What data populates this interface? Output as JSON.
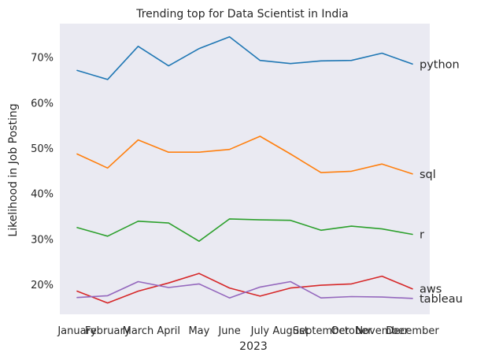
{
  "chart_data": {
    "type": "line",
    "title": "Trending top for Data Scientist in India",
    "xlabel": "2023",
    "ylabel": "Likelihood in Job Posting",
    "x": [
      "January",
      "February",
      "March",
      "April",
      "May",
      "June",
      "July",
      "August",
      "September",
      "October",
      "November",
      "December"
    ],
    "ylim": [
      13.5,
      77.5
    ],
    "yticks": [
      20,
      30,
      40,
      50,
      60,
      70
    ],
    "ytick_labels": [
      "20%",
      "30%",
      "40%",
      "50%",
      "60%",
      "70%"
    ],
    "grid": false,
    "legend": "none",
    "series": [
      {
        "name": "python",
        "color": "#1f77b4",
        "values": [
          67.2,
          65.2,
          72.5,
          68.2,
          72.0,
          74.6,
          69.4,
          68.7,
          69.3,
          69.4,
          71.0,
          68.6
        ]
      },
      {
        "name": "sql",
        "color": "#ff7f0e",
        "values": [
          48.8,
          45.7,
          51.9,
          49.2,
          49.2,
          49.8,
          52.7,
          48.8,
          44.7,
          45.0,
          46.6,
          44.4
        ]
      },
      {
        "name": "r",
        "color": "#2ca02c",
        "values": [
          32.6,
          30.7,
          34.0,
          33.6,
          29.6,
          34.5,
          34.3,
          34.2,
          32.0,
          32.9,
          32.3,
          31.1
        ]
      },
      {
        "name": "aws",
        "color": "#d62728",
        "values": [
          18.6,
          16.0,
          18.6,
          20.4,
          22.5,
          19.3,
          17.5,
          19.3,
          19.9,
          20.2,
          21.9,
          19.1
        ]
      },
      {
        "name": "tableau",
        "color": "#9467bd",
        "values": [
          17.2,
          17.6,
          20.7,
          19.4,
          20.2,
          17.1,
          19.5,
          20.7,
          17.1,
          17.4,
          17.3,
          17.0
        ]
      }
    ]
  }
}
